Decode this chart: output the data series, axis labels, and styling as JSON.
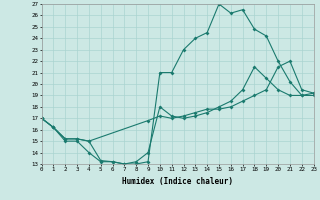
{
  "xlabel": "Humidex (Indice chaleur)",
  "xlim": [
    0,
    23
  ],
  "ylim": [
    13,
    27
  ],
  "xticks": [
    0,
    1,
    2,
    3,
    4,
    5,
    6,
    7,
    8,
    9,
    10,
    11,
    12,
    13,
    14,
    15,
    16,
    17,
    18,
    19,
    20,
    21,
    22,
    23
  ],
  "yticks": [
    13,
    14,
    15,
    16,
    17,
    18,
    19,
    20,
    21,
    22,
    23,
    24,
    25,
    26,
    27
  ],
  "bg_color": "#cce8e4",
  "grid_color": "#aad4d0",
  "line_color": "#1a7a6e",
  "line1_x": [
    0,
    1,
    2,
    3,
    4,
    5,
    6,
    7,
    8,
    9,
    10,
    11,
    12,
    13,
    14,
    15,
    16,
    17,
    18,
    19,
    20,
    21,
    22,
    23
  ],
  "line1_y": [
    17.0,
    16.2,
    15.0,
    15.0,
    14.0,
    13.2,
    13.2,
    13.0,
    13.0,
    13.2,
    21.0,
    21.0,
    23.0,
    24.0,
    24.5,
    27.0,
    26.2,
    26.5,
    24.8,
    24.2,
    22.0,
    20.2,
    19.0,
    19.0
  ],
  "line2_x": [
    0,
    1,
    2,
    3,
    4,
    5,
    6,
    7,
    8,
    9,
    10,
    11,
    12,
    13,
    14,
    15,
    16,
    17,
    18,
    19,
    20,
    21,
    22,
    23
  ],
  "line2_y": [
    17.0,
    16.2,
    15.2,
    15.2,
    15.0,
    13.3,
    13.2,
    13.0,
    13.2,
    14.0,
    18.0,
    17.2,
    17.0,
    17.2,
    17.5,
    18.0,
    18.5,
    19.5,
    21.5,
    20.5,
    19.5,
    19.0,
    19.0,
    19.2
  ],
  "line3_x": [
    0,
    1,
    2,
    3,
    4,
    9,
    10,
    11,
    12,
    13,
    14,
    15,
    16,
    17,
    18,
    19,
    20,
    21,
    22,
    23
  ],
  "line3_y": [
    17.0,
    16.2,
    15.2,
    15.2,
    15.0,
    16.8,
    17.2,
    17.0,
    17.2,
    17.5,
    17.8,
    17.8,
    18.0,
    18.5,
    19.0,
    19.5,
    21.5,
    22.0,
    19.5,
    19.2
  ]
}
